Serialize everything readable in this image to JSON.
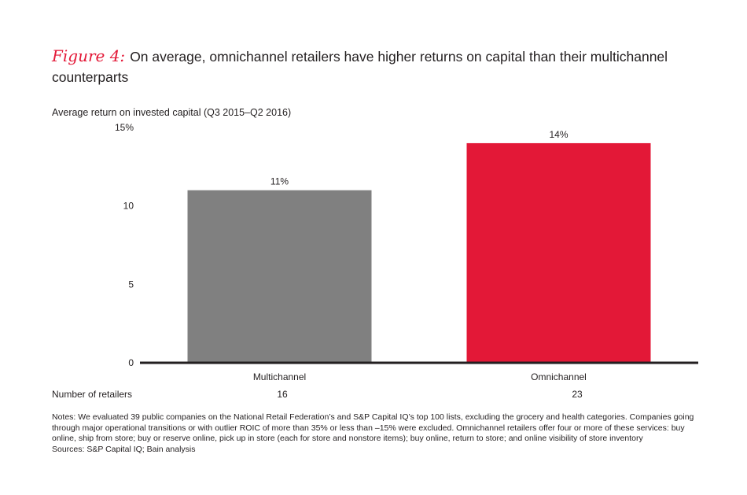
{
  "header": {
    "figure_label": "Figure 4:",
    "title": "On average, omnichannel retailers have higher returns on capital than their multichannel counterparts"
  },
  "chart_data": {
    "type": "bar",
    "title": "On average, omnichannel retailers have higher returns on capital than their multichannel counterparts",
    "ylabel": "Average return on invested capital (Q3 2015–Q2 2016)",
    "categories": [
      "Multichannel",
      "Omnichannel"
    ],
    "values": [
      11,
      14
    ],
    "data_labels": [
      "11%",
      "14%"
    ],
    "ylim": [
      0,
      15
    ],
    "yticks": [
      0,
      5,
      10,
      15
    ],
    "ytick_labels": [
      "0",
      "5",
      "10",
      "15%"
    ],
    "grid": false,
    "legend": "none",
    "colors": [
      "#808080",
      "#e31837"
    ]
  },
  "counts": {
    "label": "Number of retailers",
    "values": [
      "16",
      "23"
    ]
  },
  "notes": {
    "text": "Notes: We evaluated 39 public companies on the National Retail Federation’s and S&P Capital IQ’s top 100 lists, excluding the grocery and health categories. Companies going through major operational transitions or with outlier ROIC of more than 35% or less than –15% were excluded. Omnichannel retailers offer four or more of these services: buy online, ship from store; buy or reserve online, pick up in store (each for store and nonstore items); buy online, return to store; and online visibility of store inventory",
    "sources": "Sources: S&P Capital IQ; Bain analysis"
  }
}
